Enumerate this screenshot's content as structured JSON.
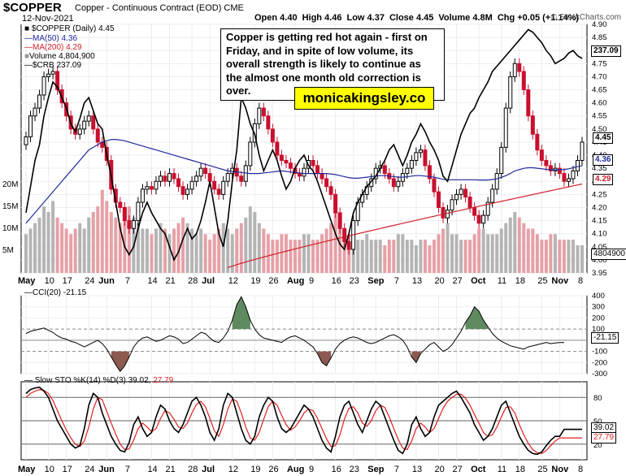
{
  "header": {
    "symbol": "$COPPER",
    "description": "Copper - Continuous Contract (EOD)",
    "exchange": "CME",
    "date": "12-Nov-2021",
    "open": "Open 4.40",
    "high": "High 4.46",
    "low": "Low 4.37",
    "close": "Close 4.45",
    "volume": "Volume 4.8M",
    "change": "Chg +0.05 (+1.14%)",
    "credit": "© StockCharts.com"
  },
  "legend": {
    "price": "$COPPER (Daily) 4.45",
    "ma50": "MA(50) 4.36",
    "ma200": "MA(200) 4.29",
    "volume": "Volume 4,804,900",
    "crb": "$CRB 237.09",
    "cci": "CCI(20) -21.15",
    "sto_label": "Slow STO %K(14) %D(3) 39.02,",
    "sto_d": "27.79"
  },
  "annotation": "Copper is getting red hot again - first on Friday, and in spite of low volume, its overall strength is likely to continue as the almost one month old correction is over.",
  "brand": "monicakingsley.co",
  "tags": {
    "crb": "237.09",
    "price": "4.45",
    "ma50": "4.36",
    "ma200": "4.29",
    "volume": "4804900",
    "cci": "-21.15",
    "sto_k": "39.02",
    "sto_d": "27.79"
  },
  "colors": {
    "up": "#000000",
    "down": "#c8102e",
    "ma50": "#1f2a9c",
    "ma200": "#d0202a",
    "crb": "#000000",
    "vol_up": "#b4b4b4",
    "vol_down": "#e6a0a6",
    "cci_pos": "#5f8a5f",
    "cci_neg": "#8c5a50",
    "sto_k": "#000000",
    "sto_d": "#e02020"
  },
  "chart_data": {
    "type": "candlestick",
    "x_labels": [
      "May",
      "10",
      "17",
      "24",
      "Jun",
      "7",
      "14",
      "21",
      "28",
      "Jul",
      "12",
      "19",
      "26",
      "Aug",
      "9",
      "16",
      "23",
      "Sep",
      "7",
      "13",
      "20",
      "27",
      "Oct",
      "11",
      "18",
      "25",
      "Nov",
      "8"
    ],
    "price_axis": {
      "ylim": [
        3.95,
        4.9
      ],
      "ticks": [
        "4.90",
        "4.85",
        "4.80",
        "4.75",
        "4.70",
        "4.65",
        "4.60",
        "4.55",
        "4.50",
        "4.45",
        "4.40",
        "4.35",
        "4.30",
        "4.25",
        "4.20",
        "4.15",
        "4.10",
        "4.05",
        "4.00",
        "3.95"
      ]
    },
    "volume_axis": {
      "ticks": [
        "20M",
        "15M",
        "10M",
        "5M"
      ]
    },
    "close": [
      4.47,
      4.55,
      4.58,
      4.63,
      4.7,
      4.71,
      4.72,
      4.65,
      4.6,
      4.55,
      4.5,
      4.48,
      4.5,
      4.53,
      4.55,
      4.5,
      4.45,
      4.43,
      4.38,
      4.27,
      4.22,
      4.2,
      4.15,
      4.12,
      4.15,
      4.22,
      4.27,
      4.28,
      4.27,
      4.3,
      4.32,
      4.3,
      4.33,
      4.31,
      4.28,
      4.25,
      4.27,
      4.3,
      4.32,
      4.35,
      4.33,
      4.3,
      4.27,
      4.25,
      4.3,
      4.33,
      4.35,
      4.32,
      4.3,
      4.36,
      4.45,
      4.52,
      4.58,
      4.55,
      4.5,
      4.45,
      4.4,
      4.38,
      4.37,
      4.35,
      4.33,
      4.32,
      4.35,
      4.38,
      4.36,
      4.33,
      4.31,
      4.28,
      4.25,
      4.18,
      4.12,
      4.07,
      4.04,
      4.15,
      4.22,
      4.25,
      4.28,
      4.31,
      4.35,
      4.36,
      4.33,
      4.31,
      4.28,
      4.3,
      4.33,
      4.35,
      4.38,
      4.41,
      4.42,
      4.36,
      4.31,
      4.26,
      4.2,
      4.16,
      4.19,
      4.23,
      4.25,
      4.27,
      4.24,
      4.2,
      4.17,
      4.14,
      4.17,
      4.22,
      4.27,
      4.33,
      4.43,
      4.58,
      4.7,
      4.75,
      4.72,
      4.65,
      4.55,
      4.48,
      4.42,
      4.38,
      4.36,
      4.34,
      4.35,
      4.33,
      4.3,
      4.31,
      4.34,
      4.38,
      4.45
    ],
    "volume_m": [
      7,
      8,
      9,
      10,
      12,
      11,
      13,
      10,
      9,
      8,
      7,
      8,
      9,
      8,
      10,
      11,
      12,
      15,
      13,
      11,
      10,
      9,
      11,
      12,
      10,
      9,
      8,
      8,
      7,
      8,
      9,
      8,
      7,
      8,
      9,
      10,
      9,
      8,
      7,
      8,
      7,
      6,
      7,
      8,
      9,
      8,
      7,
      8,
      9,
      10,
      12,
      11,
      9,
      8,
      7,
      6,
      6,
      7,
      7,
      6,
      6,
      6,
      7,
      7,
      6,
      6,
      7,
      8,
      9,
      12,
      9,
      8,
      7,
      6,
      6,
      6,
      7,
      6,
      6,
      6,
      5,
      6,
      6,
      7,
      7,
      6,
      6,
      5,
      6,
      6,
      5,
      6,
      7,
      8,
      9,
      7,
      7,
      6,
      6,
      6,
      7,
      8,
      8,
      7,
      7,
      7,
      8,
      9,
      10,
      11,
      10,
      9,
      8,
      8,
      7,
      6,
      6,
      7,
      7,
      6,
      6,
      6,
      6,
      5,
      5
    ],
    "ma50": [
      4.14,
      4.16,
      4.18,
      4.2,
      4.22,
      4.24,
      4.26,
      4.28,
      4.3,
      4.32,
      4.34,
      4.36,
      4.38,
      4.4,
      4.42,
      4.43,
      4.44,
      4.45,
      4.455,
      4.46,
      4.46,
      4.458,
      4.455,
      4.45,
      4.445,
      4.44,
      4.435,
      4.43,
      4.425,
      4.42,
      4.415,
      4.41,
      4.405,
      4.4,
      4.395,
      4.39,
      4.385,
      4.38,
      4.375,
      4.37,
      4.365,
      4.36,
      4.355,
      4.35,
      4.345,
      4.34,
      4.338,
      4.336,
      4.334,
      4.332,
      4.33,
      4.33,
      4.33,
      4.332,
      4.334,
      4.336,
      4.338,
      4.34,
      4.338,
      4.336,
      4.334,
      4.332,
      4.33,
      4.33,
      4.33,
      4.33,
      4.33,
      4.33,
      4.328,
      4.326,
      4.322,
      4.318,
      4.314,
      4.312,
      4.312,
      4.314,
      4.316,
      4.318,
      4.32,
      4.322,
      4.322,
      4.32,
      4.318,
      4.316,
      4.316,
      4.318,
      4.32,
      4.322,
      4.322,
      4.32,
      4.318,
      4.316,
      4.312,
      4.308,
      4.306,
      4.306,
      4.306,
      4.306,
      4.306,
      4.306,
      4.306,
      4.305,
      4.305,
      4.305,
      4.307,
      4.31,
      4.315,
      4.322,
      4.33,
      4.34,
      4.345,
      4.35,
      4.352,
      4.352,
      4.35,
      4.348,
      4.346,
      4.344,
      4.344,
      4.344,
      4.345,
      4.348,
      4.352,
      4.356,
      4.36
    ],
    "ma200": {
      "x_start_index": 45,
      "start": 3.97,
      "end": 4.29
    },
    "crb_axis": {
      "last": "237.09"
    },
    "crb": [
      4.18,
      4.28,
      4.38,
      4.44,
      4.55,
      4.62,
      4.68,
      4.66,
      4.62,
      4.58,
      4.52,
      4.49,
      4.54,
      4.6,
      4.62,
      4.57,
      4.52,
      4.5,
      4.4,
      4.32,
      4.22,
      4.12,
      4.05,
      4.02,
      4.05,
      4.12,
      4.18,
      4.22,
      4.18,
      4.15,
      4.12,
      4.1,
      4.05,
      4.0,
      4.03,
      4.08,
      4.12,
      4.08,
      4.1,
      4.15,
      4.22,
      4.3,
      4.2,
      4.1,
      4.05,
      4.15,
      4.3,
      4.42,
      4.62,
      4.58,
      4.52,
      4.48,
      4.4,
      4.34,
      4.38,
      4.42,
      4.38,
      4.32,
      4.27,
      4.3,
      4.35,
      4.38,
      4.4,
      4.36,
      4.34,
      4.3,
      4.25,
      4.2,
      4.15,
      4.1,
      4.06,
      4.04,
      4.1,
      4.18,
      4.22,
      4.25,
      4.28,
      4.3,
      4.32,
      4.35,
      4.38,
      4.42,
      4.44,
      4.4,
      4.36,
      4.4,
      4.45,
      4.48,
      4.52,
      4.49,
      4.45,
      4.42,
      4.38,
      4.32,
      4.3,
      4.36,
      4.42,
      4.48,
      4.52,
      4.56,
      4.58,
      4.62,
      4.65,
      4.68,
      4.72,
      4.74,
      4.76,
      4.78,
      4.8,
      4.82,
      4.84,
      4.86,
      4.88,
      4.87,
      4.85,
      4.83,
      4.8,
      4.78,
      4.75,
      4.76,
      4.77,
      4.79,
      4.8,
      4.78,
      4.77
    ],
    "cci": {
      "ylim": [
        -300,
        400
      ],
      "ticks": [
        "400",
        "300",
        "200",
        "100",
        "0",
        "-100",
        "-200",
        "-300"
      ],
      "last": -21.15,
      "values": [
        60,
        80,
        90,
        100,
        110,
        90,
        70,
        40,
        20,
        10,
        -10,
        -20,
        -40,
        -60,
        -40,
        -20,
        0,
        -30,
        -80,
        -150,
        -220,
        -280,
        -230,
        -150,
        -60,
        -10,
        20,
        30,
        10,
        -10,
        0,
        20,
        40,
        30,
        10,
        -30,
        -20,
        10,
        40,
        70,
        60,
        20,
        -10,
        -20,
        20,
        80,
        180,
        320,
        390,
        300,
        180,
        100,
        50,
        20,
        10,
        0,
        -10,
        -20,
        10,
        30,
        40,
        20,
        0,
        -30,
        -60,
        -120,
        -200,
        -230,
        -160,
        -80,
        -30,
        0,
        20,
        30,
        20,
        0,
        -20,
        -30,
        -20,
        0,
        20,
        40,
        50,
        30,
        0,
        -60,
        -150,
        -200,
        -120,
        -80,
        -40,
        -20,
        -60,
        -100,
        -80,
        -40,
        20,
        80,
        160,
        220,
        300,
        260,
        180,
        120,
        60,
        20,
        -10,
        -30,
        -50,
        -60,
        -70,
        -80,
        -60,
        -50,
        -40,
        -30,
        -20,
        -30,
        -25,
        -21,
        -21
      ]
    },
    "stochastic": {
      "ylim": [
        0,
        100
      ],
      "ticks": [
        "80",
        "50",
        "20"
      ],
      "k": [
        85,
        90,
        92,
        93,
        88,
        80,
        65,
        50,
        40,
        30,
        20,
        15,
        18,
        40,
        70,
        85,
        80,
        60,
        45,
        30,
        20,
        12,
        10,
        22,
        45,
        55,
        40,
        30,
        35,
        55,
        70,
        65,
        50,
        40,
        35,
        45,
        60,
        75,
        80,
        70,
        55,
        35,
        25,
        40,
        70,
        85,
        80,
        60,
        40,
        25,
        20,
        30,
        55,
        70,
        80,
        75,
        55,
        40,
        35,
        40,
        50,
        60,
        70,
        65,
        55,
        40,
        25,
        15,
        10,
        30,
        55,
        70,
        75,
        60,
        45,
        35,
        50,
        65,
        75,
        70,
        55,
        40,
        25,
        12,
        8,
        20,
        45,
        55,
        40,
        30,
        35,
        55,
        70,
        75,
        80,
        85,
        88,
        80,
        70,
        60,
        45,
        35,
        25,
        30,
        40,
        55,
        70,
        75,
        60,
        45,
        30,
        20,
        12,
        8,
        7,
        10,
        18,
        25,
        30,
        30,
        39,
        39,
        39,
        39,
        39
      ],
      "d": [
        80,
        85,
        88,
        90,
        89,
        85,
        76,
        63,
        50,
        38,
        28,
        20,
        17,
        24,
        42,
        65,
        80,
        77,
        62,
        47,
        33,
        20,
        13,
        14,
        25,
        40,
        47,
        42,
        36,
        40,
        53,
        63,
        60,
        52,
        42,
        40,
        47,
        60,
        71,
        75,
        68,
        53,
        37,
        30,
        45,
        65,
        78,
        75,
        60,
        42,
        28,
        25,
        35,
        52,
        68,
        75,
        70,
        57,
        45,
        38,
        42,
        50,
        60,
        65,
        63,
        53,
        40,
        27,
        17,
        18,
        32,
        52,
        66,
        68,
        60,
        47,
        43,
        50,
        63,
        70,
        67,
        55,
        40,
        26,
        15,
        13,
        24,
        40,
        47,
        42,
        35,
        40,
        53,
        66,
        75,
        80,
        84,
        84,
        79,
        70,
        58,
        47,
        35,
        30,
        32,
        42,
        55,
        67,
        68,
        60,
        45,
        32,
        21,
        13,
        9,
        8,
        12,
        18,
        24,
        28,
        28,
        28,
        28,
        28,
        28
      ]
    }
  }
}
